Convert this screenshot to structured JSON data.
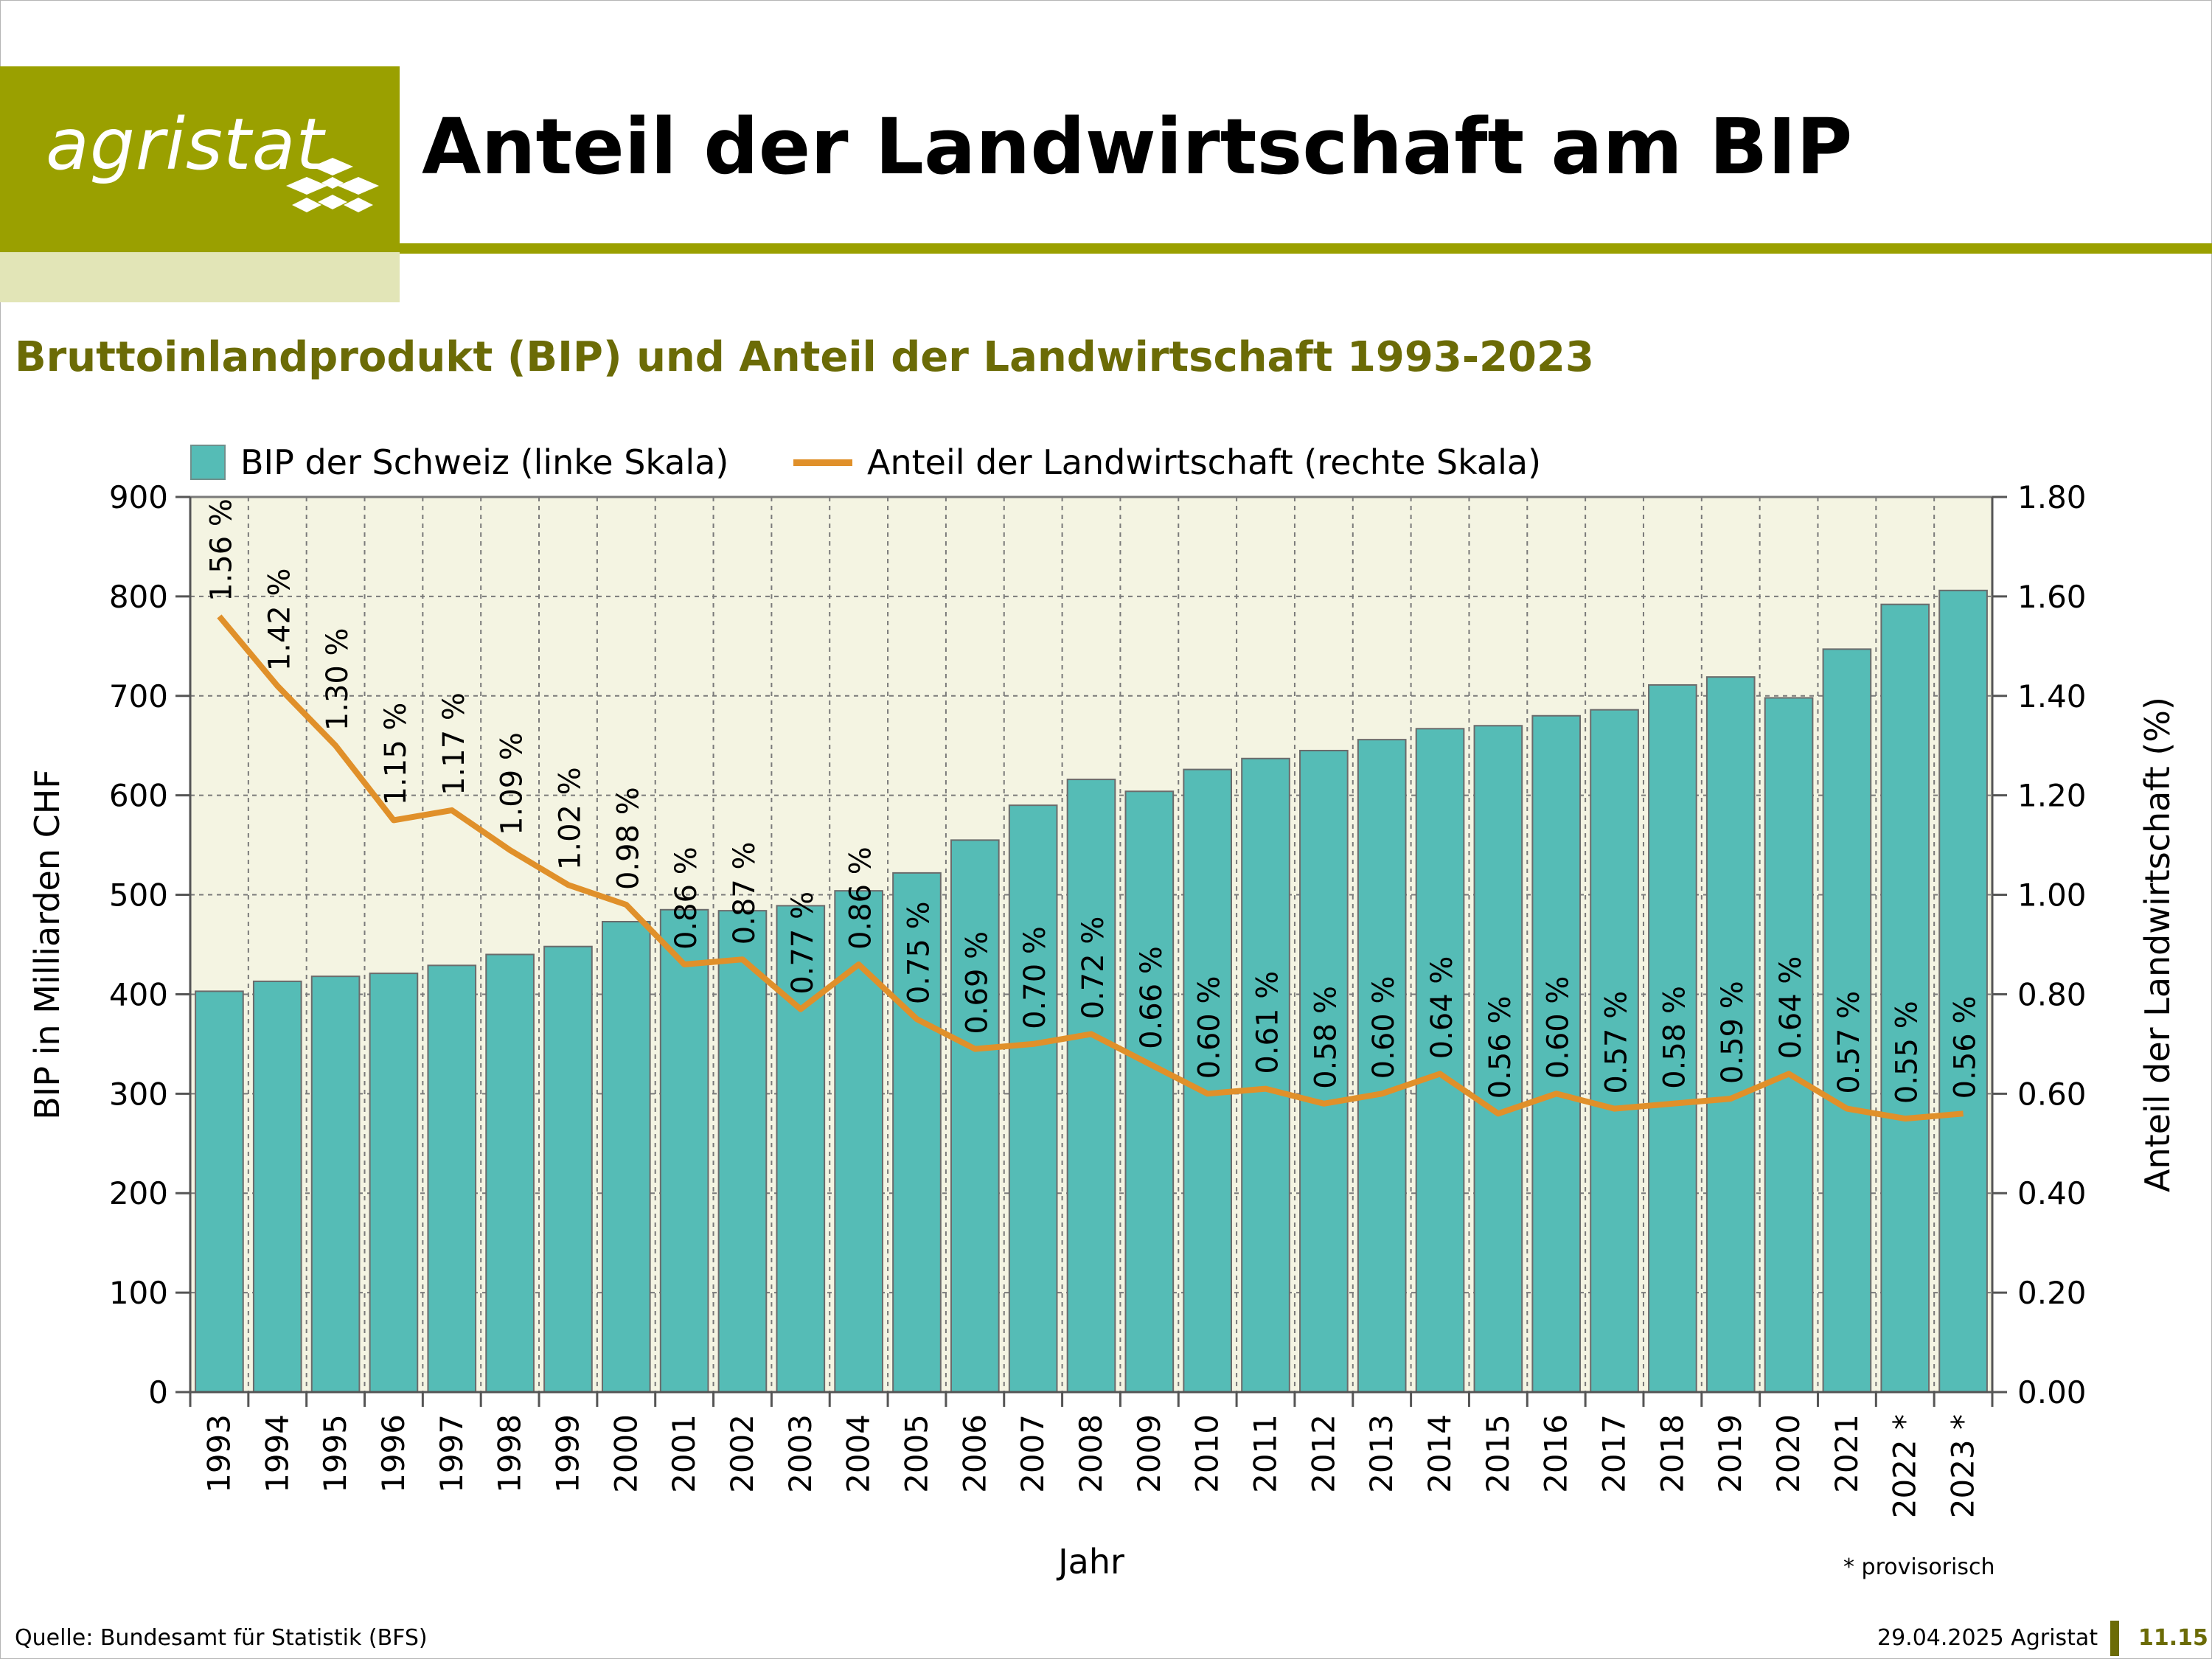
{
  "header": {
    "logo_text": "agristat",
    "title": "Anteil der Landwirtschaft am BIP"
  },
  "subtitle": "Bruttoinlandprodukt (BIP) und Anteil der Landwirtschaft 1993-2023",
  "legend": {
    "bars": "BIP der Schweiz (linke Skala)",
    "line": "Anteil der Landwirtschaft (rechte Skala)"
  },
  "footer": {
    "source": "Quelle: Bundesamt für Statistik (BFS)",
    "date": "29.04.2025 Agristat",
    "page": "11.15",
    "footnote": "* provisorisch"
  },
  "colors": {
    "brand": "#9aa000",
    "brand_light": "#e2e5b7",
    "subtitle": "#6b6b06",
    "bar": "#55bcb6",
    "line": "#e0902a",
    "plot_bg": "#f4f4e2"
  },
  "chart_data": {
    "type": "bar",
    "categories": [
      "1993",
      "1994",
      "1995",
      "1996",
      "1997",
      "1998",
      "1999",
      "2000",
      "2001",
      "2002",
      "2003",
      "2004",
      "2005",
      "2006",
      "2007",
      "2008",
      "2009",
      "2010",
      "2011",
      "2012",
      "2013",
      "2014",
      "2015",
      "2016",
      "2017",
      "2018",
      "2019",
      "2020",
      "2021",
      "2022 *",
      "2023 *"
    ],
    "series": [
      {
        "name": "BIP der Schweiz (linke Skala)",
        "type": "bar",
        "axis": "left",
        "values": [
          403,
          413,
          418,
          421,
          429,
          440,
          448,
          473,
          485,
          484,
          489,
          504,
          522,
          555,
          590,
          616,
          604,
          626,
          637,
          645,
          656,
          667,
          670,
          680,
          686,
          711,
          719,
          698,
          747,
          792,
          806
        ]
      },
      {
        "name": "Anteil der Landwirtschaft (rechte Skala)",
        "type": "line",
        "axis": "right",
        "values": [
          1.56,
          1.42,
          1.3,
          1.15,
          1.17,
          1.09,
          1.02,
          0.98,
          0.86,
          0.87,
          0.77,
          0.86,
          0.75,
          0.69,
          0.7,
          0.72,
          0.66,
          0.6,
          0.61,
          0.58,
          0.6,
          0.64,
          0.56,
          0.6,
          0.57,
          0.58,
          0.59,
          0.64,
          0.57,
          0.55,
          0.56
        ],
        "labels": [
          "1.56 %",
          "1.42 %",
          "1.30 %",
          "1.15 %",
          "1.17 %",
          "1.09 %",
          "1.02 %",
          "0.98 %",
          "0.86 %",
          "0.87 %",
          "0.77 %",
          "0.86 %",
          "0.75 %",
          "0.69 %",
          "0.70 %",
          "0.72 %",
          "0.66 %",
          "0.60 %",
          "0.61 %",
          "0.58 %",
          "0.60 %",
          "0.64 %",
          "0.56 %",
          "0.60 %",
          "0.57 %",
          "0.58 %",
          "0.59 %",
          "0.64 %",
          "0.57 %",
          "0.55 %",
          "0.56 %"
        ]
      }
    ],
    "xlabel": "Jahr",
    "ylabel": "BIP in Milliarden CHF",
    "ylabel_right": "Anteil der Landwirtschaft (%)",
    "ylim": [
      0,
      900
    ],
    "ylim_right": [
      0,
      1.8
    ],
    "yticks": [
      "0",
      "100",
      "200",
      "300",
      "400",
      "500",
      "600",
      "700",
      "800",
      "900"
    ],
    "yticks_right": [
      "0.00",
      "0.20",
      "0.40",
      "0.60",
      "0.80",
      "1.00",
      "1.20",
      "1.40",
      "1.60",
      "1.80"
    ],
    "grid": true,
    "legend_position": "top"
  }
}
